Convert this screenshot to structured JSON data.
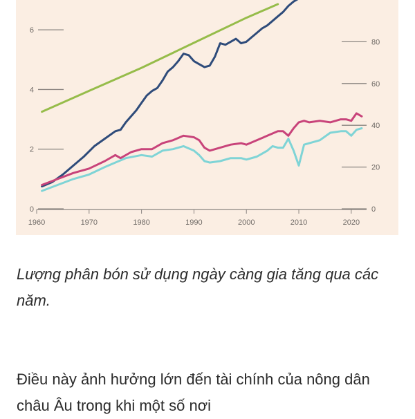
{
  "chart_data": {
    "type": "line",
    "left_axis": {
      "ylim": [
        0,
        7
      ],
      "ticks": [
        0,
        2,
        4,
        6
      ]
    },
    "right_axis": {
      "ylim": [
        0,
        100
      ],
      "ticks": [
        0,
        20,
        40,
        60,
        80
      ]
    },
    "xlim": [
      1960,
      2022
    ],
    "x_ticks": [
      1960,
      1970,
      1980,
      1990,
      2000,
      2010,
      2020
    ],
    "grid": false,
    "series": [
      {
        "color": "#96bc4a",
        "axis": "right",
        "x": [
          1961,
          1970,
          1980,
          1990,
          2000,
          2006
        ],
        "values": [
          46.5,
          56.5,
          67.5,
          79.5,
          91.5,
          98
        ]
      },
      {
        "color": "#2e4b7a",
        "axis": "left",
        "x": [
          1961,
          1963,
          1965,
          1967,
          1969,
          1971,
          1973,
          1975,
          1976,
          1977,
          1979,
          1980,
          1981,
          1982,
          1983,
          1984,
          1985,
          1986,
          1987,
          1988,
          1989,
          1990,
          1991,
          1992,
          1993,
          1994,
          1995,
          1996,
          1997,
          1998,
          1999,
          2000,
          2001,
          2002,
          2003,
          2004,
          2005,
          2006,
          2007,
          2008,
          2009,
          2010
        ],
        "values": [
          0.75,
          0.9,
          1.15,
          1.45,
          1.75,
          2.1,
          2.35,
          2.6,
          2.65,
          2.9,
          3.3,
          3.55,
          3.8,
          3.95,
          4.05,
          4.3,
          4.6,
          4.75,
          4.95,
          5.2,
          5.15,
          4.95,
          4.85,
          4.75,
          4.8,
          5.1,
          5.55,
          5.5,
          5.6,
          5.7,
          5.55,
          5.6,
          5.75,
          5.9,
          6.05,
          6.15,
          6.3,
          6.45,
          6.6,
          6.8,
          6.95,
          7.05
        ]
      },
      {
        "color": "#c8437a",
        "axis": "left",
        "x": [
          1961,
          1964,
          1967,
          1970,
          1973,
          1975,
          1976,
          1978,
          1980,
          1982,
          1984,
          1986,
          1988,
          1990,
          1991,
          1992,
          1993,
          1995,
          1997,
          1999,
          2000,
          2002,
          2004,
          2006,
          2007,
          2008,
          2009,
          2010,
          2011,
          2012,
          2014,
          2016,
          2018,
          2019,
          2020,
          2021,
          2022
        ],
        "values": [
          0.8,
          1.0,
          1.2,
          1.35,
          1.6,
          1.8,
          1.7,
          1.9,
          2.0,
          2.0,
          2.2,
          2.3,
          2.45,
          2.4,
          2.3,
          2.05,
          1.95,
          2.05,
          2.15,
          2.2,
          2.15,
          2.3,
          2.45,
          2.6,
          2.6,
          2.45,
          2.7,
          2.9,
          2.95,
          2.9,
          2.95,
          2.9,
          3.0,
          3.0,
          2.95,
          3.2,
          3.1
        ]
      },
      {
        "color": "#7fd4d6",
        "axis": "left",
        "x": [
          1961,
          1964,
          1967,
          1970,
          1973,
          1975,
          1977,
          1980,
          1982,
          1984,
          1986,
          1988,
          1990,
          1991,
          1992,
          1993,
          1995,
          1997,
          1999,
          2000,
          2002,
          2004,
          2005,
          2006,
          2007,
          2008,
          2009,
          2010,
          2011,
          2012,
          2014,
          2016,
          2018,
          2019,
          2020,
          2021,
          2022
        ],
        "values": [
          0.6,
          0.8,
          1.0,
          1.15,
          1.4,
          1.55,
          1.7,
          1.8,
          1.75,
          1.95,
          2.0,
          2.1,
          1.95,
          1.8,
          1.6,
          1.55,
          1.6,
          1.7,
          1.7,
          1.65,
          1.75,
          1.95,
          2.1,
          2.05,
          2.05,
          2.35,
          1.95,
          1.45,
          2.15,
          2.2,
          2.3,
          2.55,
          2.6,
          2.6,
          2.45,
          2.65,
          2.7
        ]
      }
    ]
  },
  "article": {
    "caption": "Lượng phân bón sử dụng ngày càng gia tăng qua các năm.",
    "body": "Điều này ảnh hưởng lớn đến tài chính của nông dân châu Âu trong khi một số nơi"
  }
}
